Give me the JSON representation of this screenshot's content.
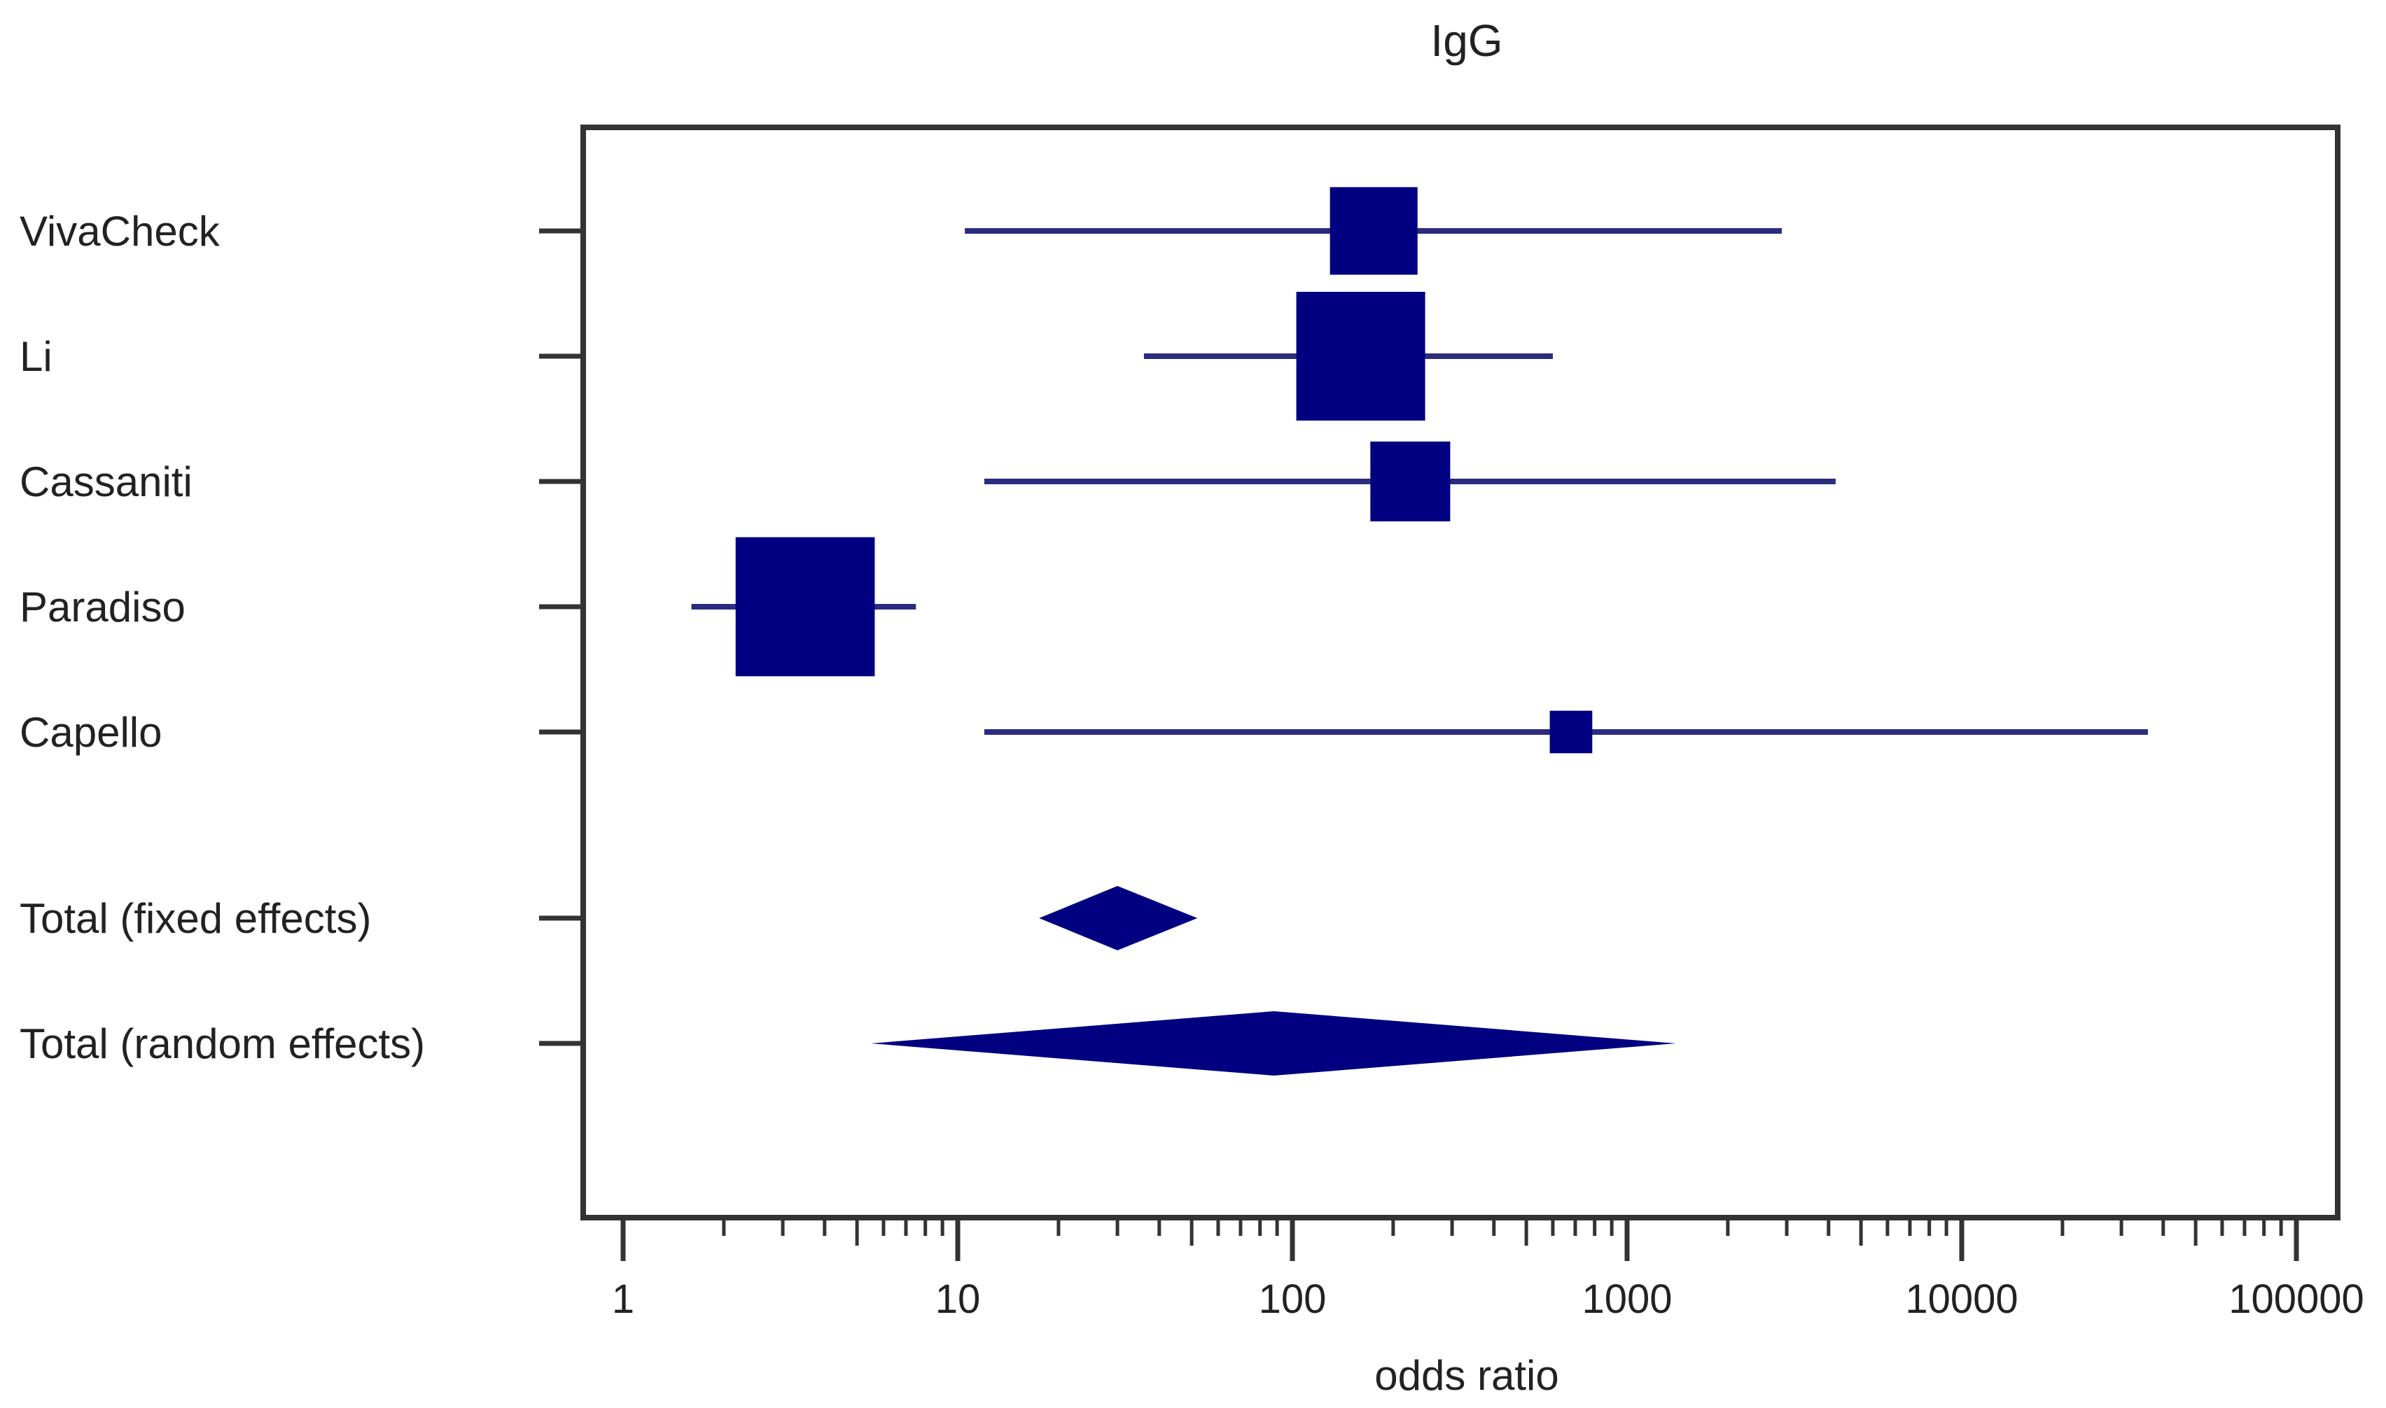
{
  "chart_data": {
    "type": "forest",
    "title": "IgG",
    "xlabel": "odds ratio",
    "xscale": "log",
    "xlim": [
      0.85,
      120000
    ],
    "x_ticks": [
      1,
      10,
      100,
      1000,
      10000,
      100000
    ],
    "x_tick_labels": [
      "1",
      "10",
      "100",
      "1000",
      "10000",
      "100000"
    ],
    "grid": false,
    "legend": "none",
    "colors": {
      "marker": "#000080",
      "ci_line": "#2b2b80",
      "frame": "#333333"
    },
    "studies": [
      {
        "label": "VivaCheck",
        "or": 175,
        "ci_low": 10.5,
        "ci_high": 2900,
        "weight": 0.68
      },
      {
        "label": "Li",
        "or": 160,
        "ci_low": 36,
        "ci_high": 600,
        "weight": 1.0
      },
      {
        "label": "Cassaniti",
        "or": 225,
        "ci_low": 12,
        "ci_high": 4200,
        "weight": 0.62
      },
      {
        "label": "Paradiso",
        "or": 3.5,
        "ci_low": 1.6,
        "ci_high": 7.5,
        "weight": 1.08
      },
      {
        "label": "Capello",
        "or": 680,
        "ci_low": 12,
        "ci_high": 36000,
        "weight": 0.33
      }
    ],
    "totals": [
      {
        "label": "Total (fixed effects)",
        "or": 30,
        "ci_low": 17.5,
        "ci_high": 52
      },
      {
        "label": "Total (random effects)",
        "or": 88,
        "ci_low": 5.5,
        "ci_high": 1400
      }
    ]
  }
}
